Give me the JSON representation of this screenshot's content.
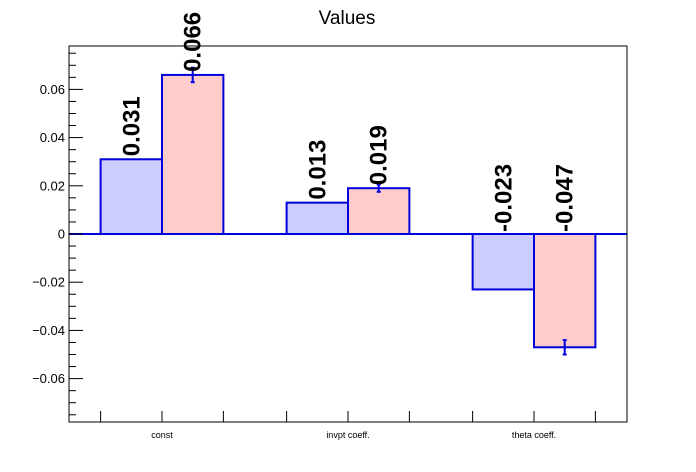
{
  "chart_data": {
    "type": "bar",
    "title": "Values",
    "xlabel": "",
    "ylabel": "",
    "categories": [
      "const",
      "invpt coeff.",
      "theta coeff."
    ],
    "series": [
      {
        "color": "#ccccff",
        "values": [
          0.031,
          0.013,
          -0.023
        ],
        "errors": [
          0,
          0,
          0
        ],
        "labels": [
          "0.031",
          "0.013",
          "-0.023"
        ]
      },
      {
        "color": "#ffcccc",
        "values": [
          0.066,
          0.019,
          -0.047
        ],
        "errors": [
          0.003,
          0.0015,
          0.003
        ],
        "labels": [
          "0.066",
          "0.019",
          "-0.047"
        ]
      }
    ],
    "ylim": [
      -0.078,
      0.078
    ],
    "yticks": [
      -0.06,
      -0.04,
      -0.02,
      0,
      0.02,
      0.04,
      0.06
    ],
    "ytick_labels": [
      "−0.06",
      "−0.04",
      "−0.02",
      "0",
      "0.02",
      "0.04",
      "0.06"
    ],
    "grid": false,
    "legend": "none",
    "bar_edge_color": "#0000dd",
    "error_bar_color": "#0000dd"
  }
}
